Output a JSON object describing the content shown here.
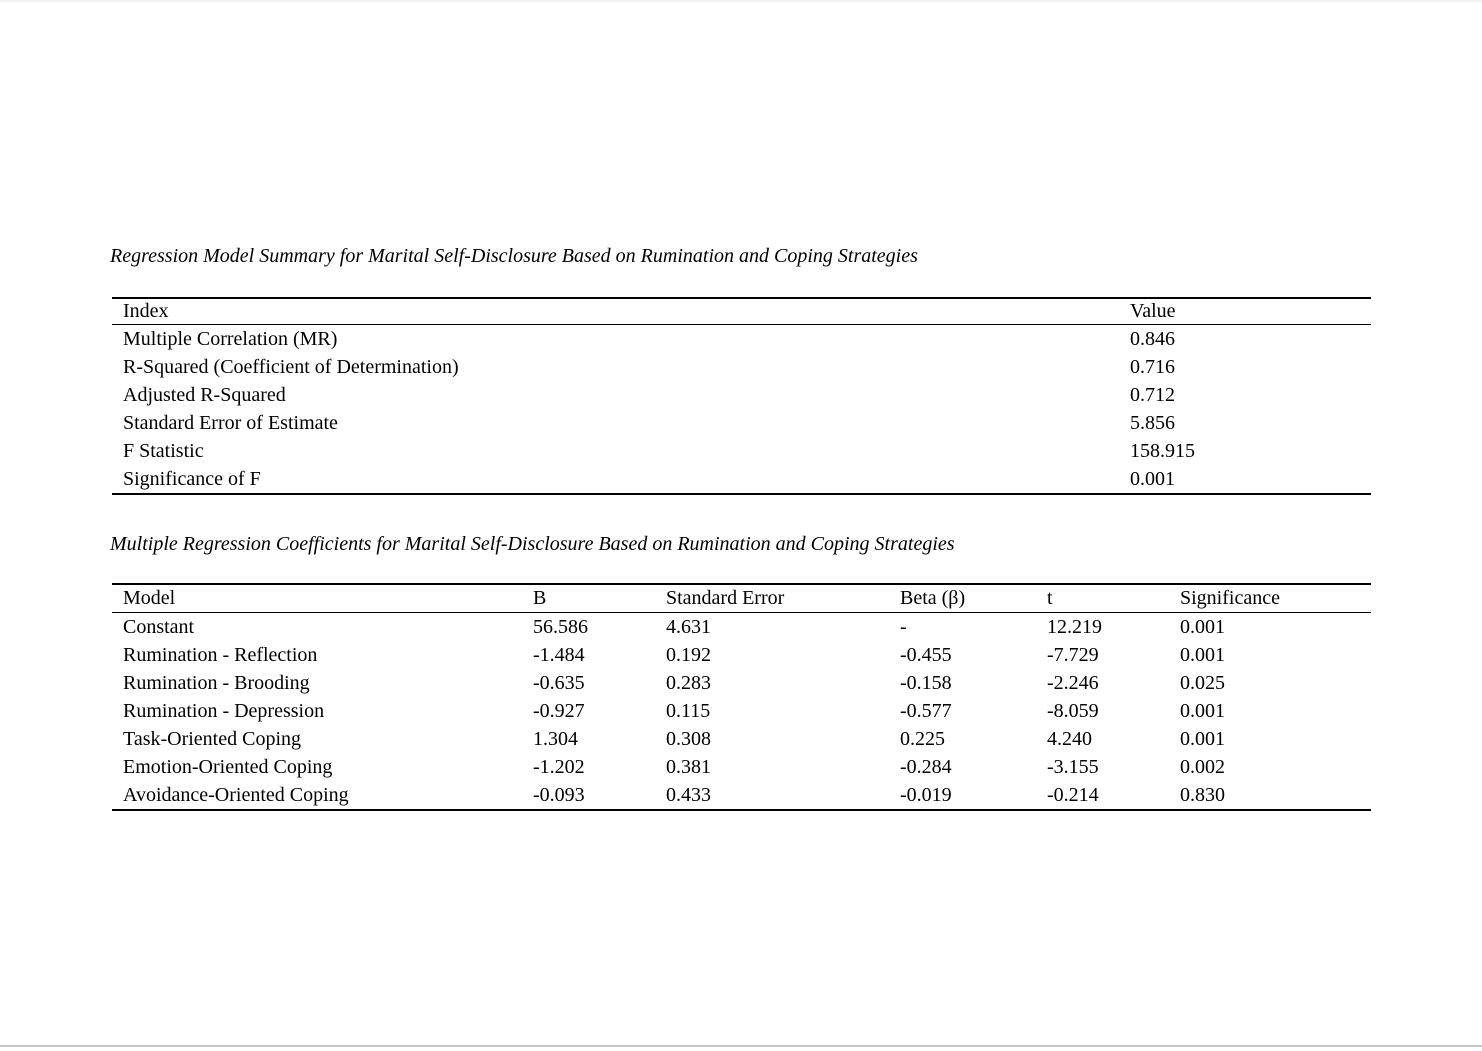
{
  "page": {
    "background_color": "#ffffff",
    "table_rule_color": "#000000",
    "bottom_edge_color": "#c7c7c7"
  },
  "table1": {
    "title": "Regression Model Summary for Marital Self-Disclosure Based on Rumination and Coping Strategies",
    "columns": [
      "Index",
      "Value"
    ],
    "rows": [
      {
        "label": "Multiple Correlation (MR)",
        "value": "0.846"
      },
      {
        "label": "R-Squared (Coefficient of Determination)",
        "value": "0.716"
      },
      {
        "label": "Adjusted R-Squared",
        "value": "0.712"
      },
      {
        "label": "Standard Error of Estimate",
        "value": "5.856"
      },
      {
        "label": "F Statistic",
        "value": "158.915"
      },
      {
        "label": "Significance of F",
        "value": "0.001"
      }
    ]
  },
  "table2": {
    "title": "Multiple Regression Coefficients for Marital Self-Disclosure Based on Rumination and Coping Strategies",
    "columns": [
      "Model",
      "B",
      "Standard Error",
      "Beta (β)",
      "t",
      "Significance"
    ],
    "rows": [
      {
        "model": "Constant",
        "b": "56.586",
        "se": "4.631",
        "beta": "-",
        "t": "12.219",
        "sig": "0.001"
      },
      {
        "model": "Rumination - Reflection",
        "b": "-1.484",
        "se": "0.192",
        "beta": "-0.455",
        "t": "-7.729",
        "sig": "0.001"
      },
      {
        "model": "Rumination - Brooding",
        "b": "-0.635",
        "se": "0.283",
        "beta": "-0.158",
        "t": "-2.246",
        "sig": "0.025"
      },
      {
        "model": "Rumination - Depression",
        "b": "-0.927",
        "se": "0.115",
        "beta": "-0.577",
        "t": "-8.059",
        "sig": "0.001"
      },
      {
        "model": "Task-Oriented Coping",
        "b": "1.304",
        "se": "0.308",
        "beta": "0.225",
        "t": "4.240",
        "sig": "0.001"
      },
      {
        "model": "Emotion-Oriented Coping",
        "b": "-1.202",
        "se": "0.381",
        "beta": "-0.284",
        "t": "-3.155",
        "sig": "0.002"
      },
      {
        "model": "Avoidance-Oriented Coping",
        "b": "-0.093",
        "se": "0.433",
        "beta": "-0.019",
        "t": "-0.214",
        "sig": "0.830"
      }
    ]
  }
}
